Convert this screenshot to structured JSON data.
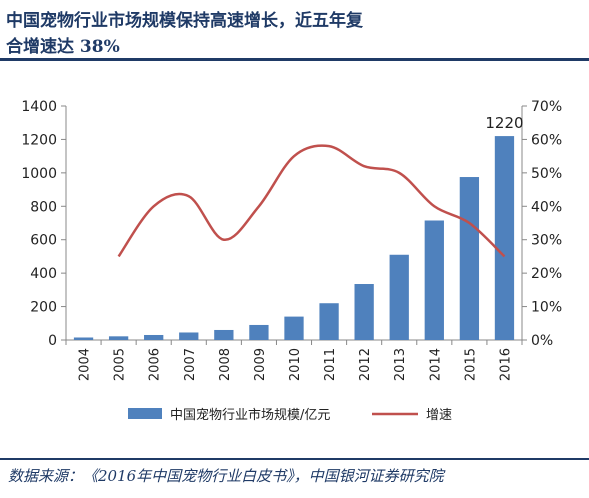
{
  "header": {
    "title_line1": "中国宠物行业市场规模保持高速增长，近五年复",
    "title_line2": "合增速达 38%"
  },
  "source": "数据来源：《2016年中国宠物行业白皮书》，中国银河证券研究院",
  "colors": {
    "bar": "#4f81bd",
    "line": "#c0504d",
    "title": "#1f3a66"
  },
  "chart_data": {
    "type": "bar",
    "categories": [
      "2004",
      "2005",
      "2006",
      "2007",
      "2008",
      "2009",
      "2010",
      "2011",
      "2012",
      "2013",
      "2014",
      "2015",
      "2016"
    ],
    "series": [
      {
        "name": "中国宠物行业市场规模/亿元",
        "type": "bar",
        "axis": "left",
        "values": [
          15,
          22,
          30,
          45,
          60,
          90,
          140,
          220,
          335,
          510,
          715,
          975,
          1220
        ]
      },
      {
        "name": "增速",
        "type": "line",
        "axis": "right",
        "values": [
          null,
          0.25,
          0.4,
          0.43,
          0.3,
          0.4,
          0.55,
          0.58,
          0.52,
          0.5,
          0.4,
          0.35,
          0.25
        ]
      }
    ],
    "data_labels": [
      {
        "category": "2016",
        "text": "1220"
      }
    ],
    "y_left": {
      "min": 0,
      "max": 1400,
      "ticks": [
        "0",
        "200",
        "400",
        "600",
        "800",
        "1000",
        "1200",
        "1400"
      ]
    },
    "y_right": {
      "min": 0,
      "max": 0.7,
      "ticks": [
        "0%",
        "10%",
        "20%",
        "30%",
        "40%",
        "50%",
        "60%",
        "70%"
      ]
    },
    "grid": false,
    "legend_position": "bottom"
  }
}
